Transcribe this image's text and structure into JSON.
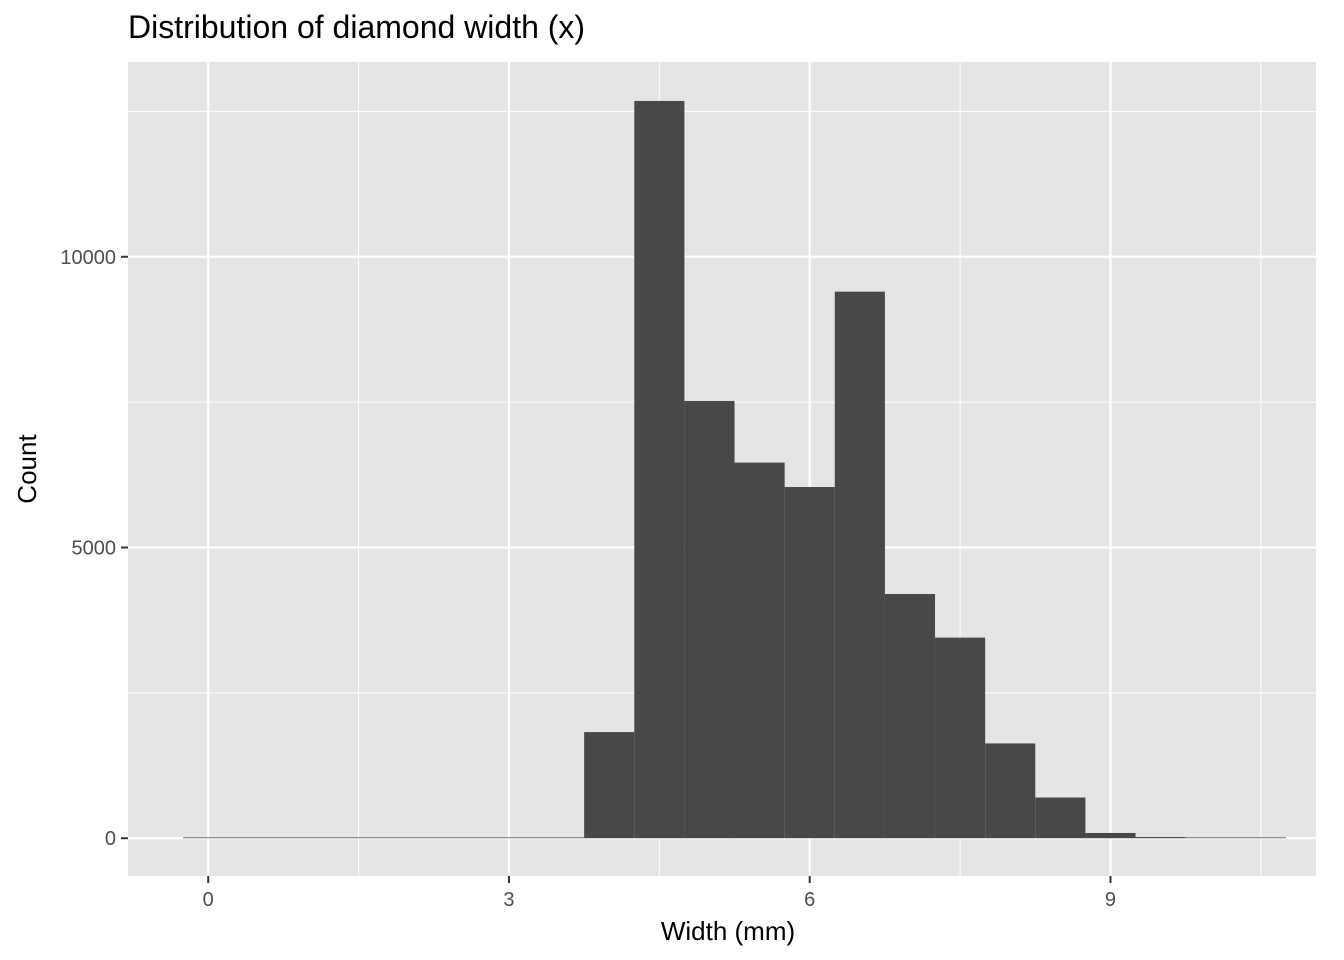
{
  "chart_data": {
    "type": "bar",
    "title": "Distribution of diamond width (x)",
    "xlabel": "Width (mm)",
    "ylabel": "Count",
    "bin_width": 0.5,
    "bins": [
      {
        "center": 0.0,
        "count": 8
      },
      {
        "center": 0.5,
        "count": 0
      },
      {
        "center": 1.0,
        "count": 0
      },
      {
        "center": 1.5,
        "count": 0
      },
      {
        "center": 2.0,
        "count": 0
      },
      {
        "center": 2.5,
        "count": 0
      },
      {
        "center": 3.0,
        "count": 0
      },
      {
        "center": 3.5,
        "count": 3
      },
      {
        "center": 4.0,
        "count": 1825
      },
      {
        "center": 4.5,
        "count": 12680
      },
      {
        "center": 5.0,
        "count": 7520
      },
      {
        "center": 5.5,
        "count": 6460
      },
      {
        "center": 6.0,
        "count": 6040
      },
      {
        "center": 6.5,
        "count": 9400
      },
      {
        "center": 7.0,
        "count": 4200
      },
      {
        "center": 7.5,
        "count": 3450
      },
      {
        "center": 8.0,
        "count": 1630
      },
      {
        "center": 8.5,
        "count": 700
      },
      {
        "center": 9.0,
        "count": 90
      },
      {
        "center": 9.5,
        "count": 20
      },
      {
        "center": 10.0,
        "count": 8
      },
      {
        "center": 10.5,
        "count": 2
      }
    ],
    "xlim": [
      -0.8,
      11.05
    ],
    "ylim": [
      -650,
      13350
    ],
    "x_ticks": [
      0,
      3,
      6,
      9
    ],
    "x_tick_labels": [
      "0",
      "3",
      "6",
      "9"
    ],
    "y_ticks": [
      0,
      5000,
      10000
    ],
    "y_tick_labels": [
      "0",
      "5000",
      "10000"
    ],
    "grid": true,
    "colors": {
      "bar": "#484848",
      "panel": "#e5e5e5",
      "grid": "#ffffff",
      "tick_label": "#4d4d4d"
    }
  }
}
